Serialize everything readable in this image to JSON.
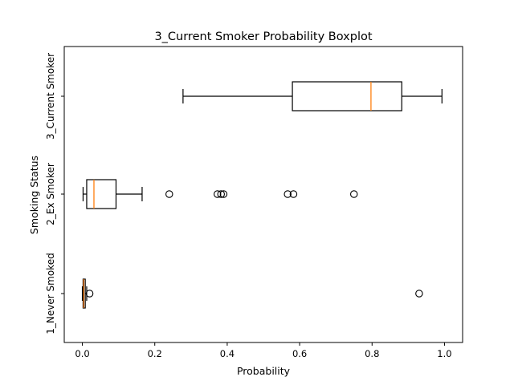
{
  "chart_data": {
    "type": "boxplot",
    "orientation": "horizontal",
    "title": "3_Current Smoker Probability Boxplot",
    "xlabel": "Probability",
    "ylabel": "Smoking Status",
    "xlim": [
      -0.05,
      1.05
    ],
    "xticks": [
      0.0,
      0.2,
      0.4,
      0.6,
      0.8,
      1.0
    ],
    "xtick_labels": [
      "0.0",
      "0.2",
      "0.4",
      "0.6",
      "0.8",
      "1.0"
    ],
    "grid": false,
    "categories": [
      "1_Never Smoked",
      "2_Ex Smoker",
      "3_Current Smoker"
    ],
    "boxes": [
      {
        "category": "1_Never Smoked",
        "whisker_low": 0.0,
        "q1": 0.002,
        "median": 0.004,
        "q3": 0.008,
        "whisker_high": 0.012,
        "fliers": [
          0.02,
          0.93
        ]
      },
      {
        "category": "2_Ex Smoker",
        "whisker_low": 0.002,
        "q1": 0.012,
        "median": 0.032,
        "q3": 0.093,
        "whisker_high": 0.165,
        "fliers": [
          0.24,
          0.373,
          0.383,
          0.39,
          0.567,
          0.583,
          0.75
        ]
      },
      {
        "category": "3_Current Smoker",
        "whisker_low": 0.278,
        "q1": 0.58,
        "median": 0.797,
        "q3": 0.882,
        "whisker_high": 0.993,
        "fliers": []
      }
    ],
    "colors": {
      "box": "#000000",
      "median": "#ff7f0e",
      "flier": "#000000",
      "background": "#ffffff"
    }
  }
}
